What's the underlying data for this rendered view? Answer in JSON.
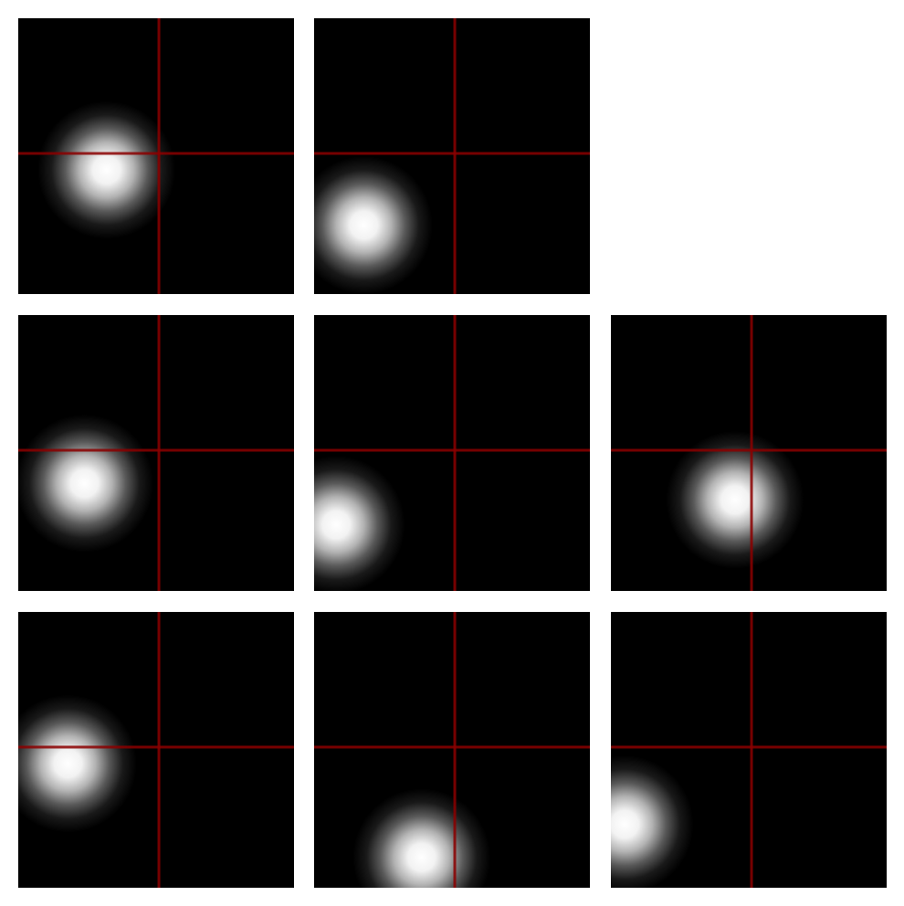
{
  "grid": {
    "rows": 3,
    "columns": 3,
    "background_color": "#ffffff"
  },
  "style": {
    "tile_background": "#000000",
    "crosshair_color": "#8b0000",
    "blob_color": "#ffffff"
  },
  "tiles": [
    {
      "row": 0,
      "col": 0,
      "has_image": true,
      "blob_center_fraction": [
        0.32,
        0.55
      ]
    },
    {
      "row": 0,
      "col": 1,
      "has_image": true,
      "blob_center_fraction": [
        0.18,
        0.75
      ]
    },
    {
      "row": 0,
      "col": 2,
      "has_image": false
    },
    {
      "row": 1,
      "col": 0,
      "has_image": true,
      "blob_center_fraction": [
        0.24,
        0.61
      ]
    },
    {
      "row": 1,
      "col": 1,
      "has_image": true,
      "blob_center_fraction": [
        0.08,
        0.76
      ]
    },
    {
      "row": 1,
      "col": 2,
      "has_image": true,
      "blob_center_fraction": [
        0.45,
        0.67
      ]
    },
    {
      "row": 2,
      "col": 0,
      "has_image": true,
      "blob_center_fraction": [
        0.18,
        0.55
      ]
    },
    {
      "row": 2,
      "col": 1,
      "has_image": true,
      "blob_center_fraction": [
        0.39,
        0.89
      ]
    },
    {
      "row": 2,
      "col": 2,
      "has_image": true,
      "blob_center_fraction": [
        0.05,
        0.77
      ]
    }
  ]
}
